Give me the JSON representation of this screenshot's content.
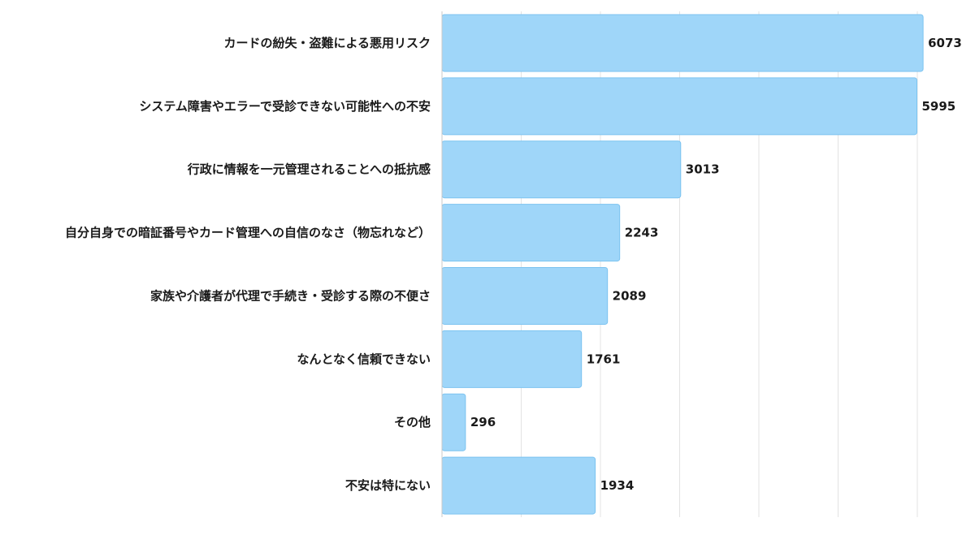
{
  "chart_data": {
    "type": "bar",
    "orientation": "horizontal",
    "title": "",
    "xlabel": "",
    "ylabel": "",
    "categories": [
      "カードの紛失・盗難による悪用リスク",
      "システム障害やエラーで受診できない可能性への不安",
      "行政に情報を一元管理されることへの抵抗感",
      "自分自身での暗証番号やカード管理への自信のなさ（物忘れなど）",
      "家族や介護者が代理で手続き・受診する際の不便さ",
      "なんとなく信頼できない",
      "その他",
      "不安は特にない"
    ],
    "values": [
      6073,
      5995,
      3013,
      2243,
      2089,
      1761,
      296,
      1934
    ],
    "xlim": [
      0,
      6000
    ],
    "grid": true,
    "grid_step": 1000,
    "bar_color": "#9fd6f9",
    "bar_edge_color": "#7cc3f0"
  }
}
